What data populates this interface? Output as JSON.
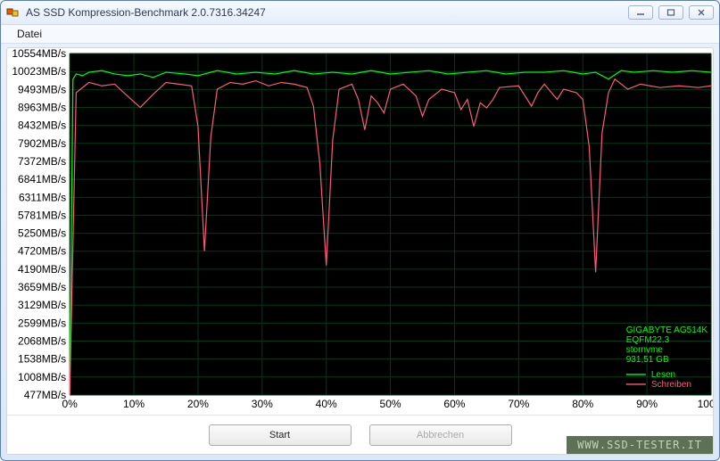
{
  "window": {
    "title": "AS SSD Kompression-Benchmark 2.0.7316.34247"
  },
  "menubar": {
    "items": [
      "Datei"
    ]
  },
  "chart": {
    "bg_color": "#000000",
    "grid_color": "#003a1e",
    "x_range": [
      0,
      100
    ],
    "x_ticks": [
      0,
      10,
      20,
      30,
      40,
      50,
      60,
      70,
      80,
      90,
      100
    ],
    "x_tick_labels": [
      "0%",
      "10%",
      "20%",
      "30%",
      "40%",
      "50%",
      "60%",
      "70%",
      "80%",
      "90%",
      "100%"
    ],
    "y_range": [
      477,
      10554
    ],
    "y_ticks": [
      477,
      1008,
      1538,
      2068,
      2599,
      3129,
      3659,
      4190,
      4720,
      5250,
      5781,
      6311,
      6841,
      7372,
      7902,
      8432,
      8963,
      9493,
      10023,
      10554
    ],
    "y_tick_labels": [
      "477MB/s",
      "1008MB/s",
      "1538MB/s",
      "2068MB/s",
      "2599MB/s",
      "3129MB/s",
      "3659MB/s",
      "4190MB/s",
      "4720MB/s",
      "5250MB/s",
      "5781MB/s",
      "6311MB/s",
      "6841MB/s",
      "7372MB/s",
      "7902MB/s",
      "8432MB/s",
      "8963MB/s",
      "9493MB/s",
      "10023MB/s",
      "10554MB/s"
    ],
    "series": [
      {
        "name": "Lesen",
        "color": "#00ff00",
        "points": [
          [
            0,
            477
          ],
          [
            0.5,
            9800
          ],
          [
            1,
            9950
          ],
          [
            2,
            9900
          ],
          [
            3,
            10000
          ],
          [
            5,
            10050
          ],
          [
            7,
            9950
          ],
          [
            9,
            9900
          ],
          [
            11,
            9950
          ],
          [
            13,
            9850
          ],
          [
            15,
            10000
          ],
          [
            18,
            9950
          ],
          [
            20,
            9900
          ],
          [
            23,
            10050
          ],
          [
            26,
            9950
          ],
          [
            29,
            10000
          ],
          [
            32,
            9950
          ],
          [
            35,
            10050
          ],
          [
            38,
            9950
          ],
          [
            41,
            10000
          ],
          [
            44,
            9950
          ],
          [
            47,
            10050
          ],
          [
            50,
            9950
          ],
          [
            53,
            10000
          ],
          [
            56,
            10050
          ],
          [
            59,
            9950
          ],
          [
            62,
            10000
          ],
          [
            65,
            10050
          ],
          [
            68,
            9950
          ],
          [
            71,
            10000
          ],
          [
            74,
            10000
          ],
          [
            77,
            10050
          ],
          [
            80,
            9950
          ],
          [
            82,
            10000
          ],
          [
            84,
            9800
          ],
          [
            86,
            10050
          ],
          [
            88,
            10000
          ],
          [
            91,
            10050
          ],
          [
            94,
            10000
          ],
          [
            97,
            10050
          ],
          [
            100,
            10000
          ]
        ]
      },
      {
        "name": "Schreiben",
        "color": "#ff5a7a",
        "points": [
          [
            0,
            477
          ],
          [
            1,
            9400
          ],
          [
            3,
            9700
          ],
          [
            5,
            9600
          ],
          [
            7,
            9650
          ],
          [
            9,
            9300
          ],
          [
            11,
            8960
          ],
          [
            13,
            9350
          ],
          [
            15,
            9700
          ],
          [
            17,
            9650
          ],
          [
            19,
            9600
          ],
          [
            20,
            8400
          ],
          [
            21,
            4720
          ],
          [
            22,
            8100
          ],
          [
            23,
            9500
          ],
          [
            25,
            9700
          ],
          [
            27,
            9650
          ],
          [
            29,
            9750
          ],
          [
            31,
            9600
          ],
          [
            33,
            9700
          ],
          [
            35,
            9650
          ],
          [
            37,
            9550
          ],
          [
            38,
            9000
          ],
          [
            39,
            7300
          ],
          [
            40,
            4300
          ],
          [
            41,
            8000
          ],
          [
            42,
            9500
          ],
          [
            44,
            9650
          ],
          [
            45,
            9200
          ],
          [
            46,
            8300
          ],
          [
            47,
            9300
          ],
          [
            48,
            9100
          ],
          [
            49,
            8800
          ],
          [
            50,
            9500
          ],
          [
            52,
            9650
          ],
          [
            54,
            9300
          ],
          [
            55,
            8700
          ],
          [
            56,
            9200
          ],
          [
            58,
            9500
          ],
          [
            60,
            9400
          ],
          [
            61,
            8900
          ],
          [
            62,
            9200
          ],
          [
            63,
            8400
          ],
          [
            64,
            9100
          ],
          [
            65,
            8950
          ],
          [
            66,
            9200
          ],
          [
            67,
            9550
          ],
          [
            70,
            9600
          ],
          [
            72,
            9000
          ],
          [
            73,
            9400
          ],
          [
            74,
            9650
          ],
          [
            76,
            9200
          ],
          [
            77,
            9500
          ],
          [
            79,
            9400
          ],
          [
            80,
            9200
          ],
          [
            81,
            7800
          ],
          [
            82,
            4100
          ],
          [
            83,
            8200
          ],
          [
            84,
            9400
          ],
          [
            85,
            9800
          ],
          [
            87,
            9500
          ],
          [
            89,
            9650
          ],
          [
            92,
            9550
          ],
          [
            95,
            9600
          ],
          [
            98,
            9550
          ],
          [
            100,
            9600
          ]
        ]
      }
    ],
    "info_lines": [
      "GIGABYTE AG514K",
      "EQFM22.3",
      "stornvme",
      "931,51 GB"
    ],
    "legend": [
      {
        "label": "Lesen",
        "color": "#00ff00"
      },
      {
        "label": "Schreiben",
        "color": "#ff5a7a"
      }
    ]
  },
  "buttons": {
    "start": "Start",
    "cancel": "Abbrechen"
  },
  "watermark": "WWW.SSD-TESTER.IT"
}
